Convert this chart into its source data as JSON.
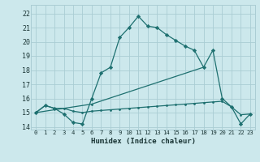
{
  "xlabel": "Humidex (Indice chaleur)",
  "bg_color": "#cce8ec",
  "grid_color": "#aacdd4",
  "line_color": "#1e7070",
  "line1_x": [
    0,
    1,
    2,
    3,
    4,
    5,
    6,
    7,
    8,
    9,
    10,
    11,
    12,
    13,
    14,
    15,
    16,
    17,
    18,
    19,
    20,
    21,
    22,
    23
  ],
  "line1_y": [
    15.0,
    15.5,
    15.3,
    14.9,
    14.3,
    14.2,
    16.0,
    17.8,
    18.2,
    20.3,
    21.0,
    21.8,
    21.1,
    21.0,
    20.5,
    20.1,
    19.7,
    19.4,
    18.2,
    19.4,
    16.0,
    15.4,
    14.2,
    14.9
  ],
  "line2_x": [
    0,
    6,
    18
  ],
  "line2_y": [
    15.0,
    15.6,
    18.2
  ],
  "line3_x": [
    0,
    1,
    2,
    3,
    4,
    5,
    6,
    7,
    8,
    9,
    10,
    11,
    12,
    13,
    14,
    15,
    16,
    17,
    18,
    19,
    20,
    21,
    22,
    23
  ],
  "line3_y": [
    15.0,
    15.5,
    15.3,
    15.3,
    15.1,
    15.0,
    15.1,
    15.15,
    15.2,
    15.25,
    15.3,
    15.35,
    15.4,
    15.45,
    15.5,
    15.55,
    15.6,
    15.65,
    15.7,
    15.75,
    15.8,
    15.4,
    14.85,
    14.9
  ],
  "xlim": [
    -0.5,
    23.5
  ],
  "ylim": [
    13.8,
    22.6
  ],
  "yticks": [
    14,
    15,
    16,
    17,
    18,
    19,
    20,
    21,
    22
  ],
  "xticks": [
    0,
    1,
    2,
    3,
    4,
    5,
    6,
    7,
    8,
    9,
    10,
    11,
    12,
    13,
    14,
    15,
    16,
    17,
    18,
    19,
    20,
    21,
    22,
    23
  ],
  "xticklabels": [
    "0",
    "1",
    "2",
    "3",
    "4",
    "5",
    "6",
    "7",
    "8",
    "9",
    "10",
    "11",
    "12",
    "13",
    "14",
    "15",
    "16",
    "17",
    "18",
    "19",
    "20",
    "21",
    "22",
    "23"
  ]
}
